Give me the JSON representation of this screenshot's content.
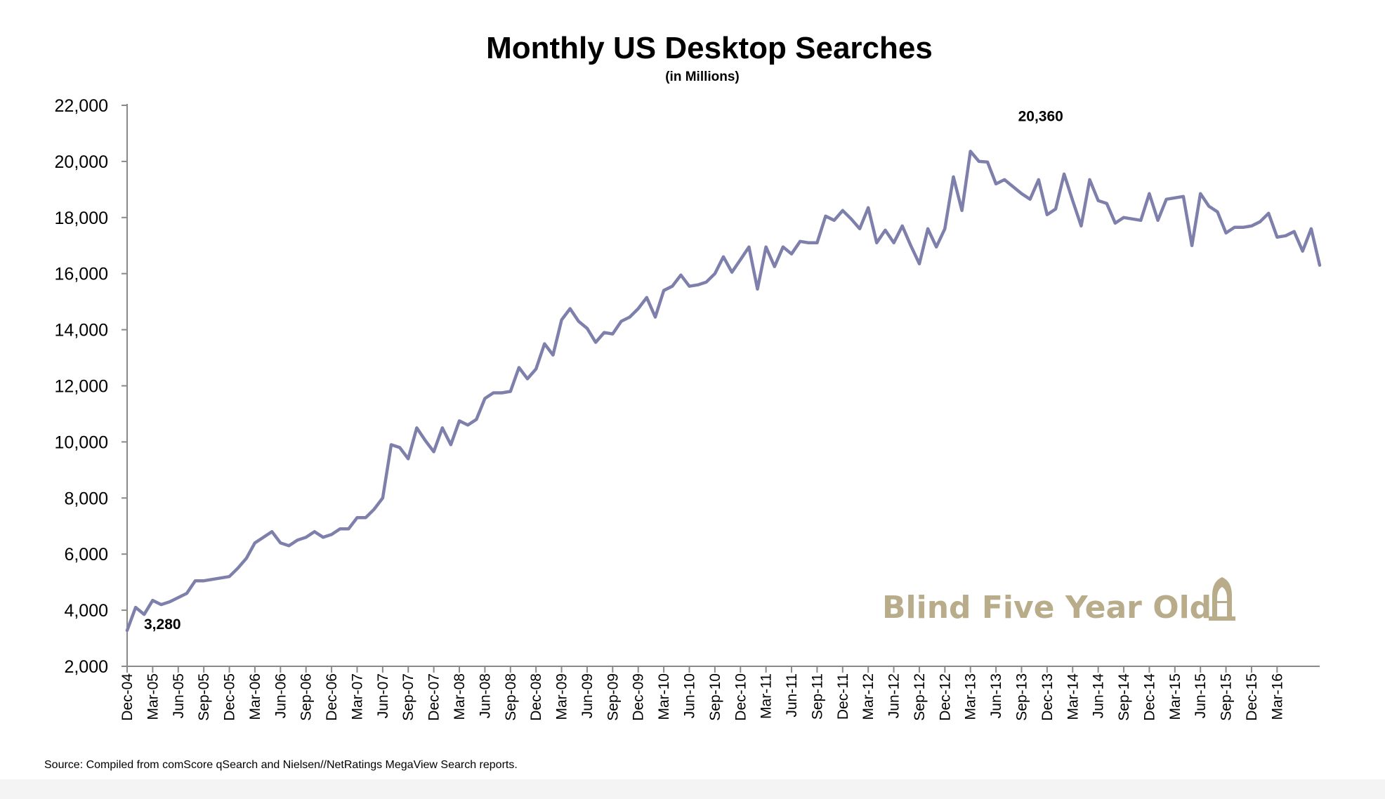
{
  "chart_data": {
    "type": "line",
    "title": "Monthly US Desktop Searches",
    "subtitle": "(in Millions)",
    "xlabel": "",
    "ylabel": "",
    "ylim": [
      2000,
      22000
    ],
    "yticks": [
      2000,
      4000,
      6000,
      8000,
      10000,
      12000,
      14000,
      16000,
      18000,
      20000,
      22000
    ],
    "ytick_labels": [
      "2,000",
      "4,000",
      "6,000",
      "8,000",
      "10,000",
      "12,000",
      "14,000",
      "16,000",
      "18,000",
      "20,000",
      "22,000"
    ],
    "xtick_labels": [
      "Dec-04",
      "Mar-05",
      "Jun-05",
      "Sep-05",
      "Dec-05",
      "Mar-06",
      "Jun-06",
      "Sep-06",
      "Dec-06",
      "Mar-07",
      "Jun-07",
      "Sep-07",
      "Dec-07",
      "Mar-08",
      "Jun-08",
      "Sep-08",
      "Dec-08",
      "Mar-09",
      "Jun-09",
      "Sep-09",
      "Dec-09",
      "Mar-10",
      "Jun-10",
      "Sep-10",
      "Dec-10",
      "Mar-11",
      "Jun-11",
      "Sep-11",
      "Dec-11",
      "Mar-12",
      "Jun-12",
      "Sep-12",
      "Dec-12",
      "Mar-13",
      "Jun-13",
      "Sep-13",
      "Dec-13",
      "Mar-14",
      "Jun-14",
      "Sep-14",
      "Dec-14",
      "Mar-15",
      "Jun-15",
      "Sep-15",
      "Dec-15",
      "Mar-16"
    ],
    "series": [
      {
        "color": "#7e7fab",
        "values": [
          3280,
          4100,
          3850,
          4350,
          4200,
          4300,
          4450,
          4600,
          5050,
          5050,
          5100,
          5150,
          5200,
          5500,
          5850,
          6400,
          6600,
          6800,
          6400,
          6300,
          6500,
          6600,
          6800,
          6600,
          6700,
          6900,
          6900,
          7300,
          7300,
          7600,
          8000,
          9900,
          9800,
          9400,
          10500,
          10050,
          9650,
          10500,
          9900,
          10750,
          10600,
          10800,
          11550,
          11750,
          11750,
          11800,
          12650,
          12250,
          12600,
          13500,
          13100,
          14350,
          14750,
          14300,
          14050,
          13550,
          13900,
          13850,
          14300,
          14450,
          14750,
          15150,
          14450,
          15400,
          15550,
          15950,
          15550,
          15600,
          15700,
          16000,
          16600,
          16050,
          16500,
          16950,
          15450,
          16950,
          16250,
          16950,
          16700,
          17150,
          17100,
          17100,
          18050,
          17900,
          18250,
          17950,
          17600,
          18350,
          17100,
          17550,
          17100,
          17700,
          17000,
          16350,
          17600,
          16950,
          17600,
          19450,
          18250,
          20360,
          20000,
          19980,
          19200,
          19350,
          19100,
          18850,
          18650,
          19350,
          18100,
          18300,
          19550,
          18600,
          17700,
          19350,
          18600,
          18500,
          17800,
          18000,
          17950,
          17900,
          18850,
          17900,
          18650,
          18700,
          18750,
          17000,
          18850,
          18400,
          18200,
          17450,
          17650,
          17650,
          17700,
          17850,
          18150,
          17300,
          17350,
          17500,
          16800,
          17600,
          16300
        ]
      }
    ],
    "annotations": [
      {
        "text": "3,280",
        "index": 0
      },
      {
        "text": "20,360",
        "index": 99
      }
    ],
    "grid": false,
    "legend": "none"
  },
  "source_note": "Source: Compiled from comScore qSearch and Nielsen//NetRatings MegaView Search reports.",
  "watermark": {
    "text": "Blind Five Year Old",
    "icon": "building-logo-icon"
  }
}
